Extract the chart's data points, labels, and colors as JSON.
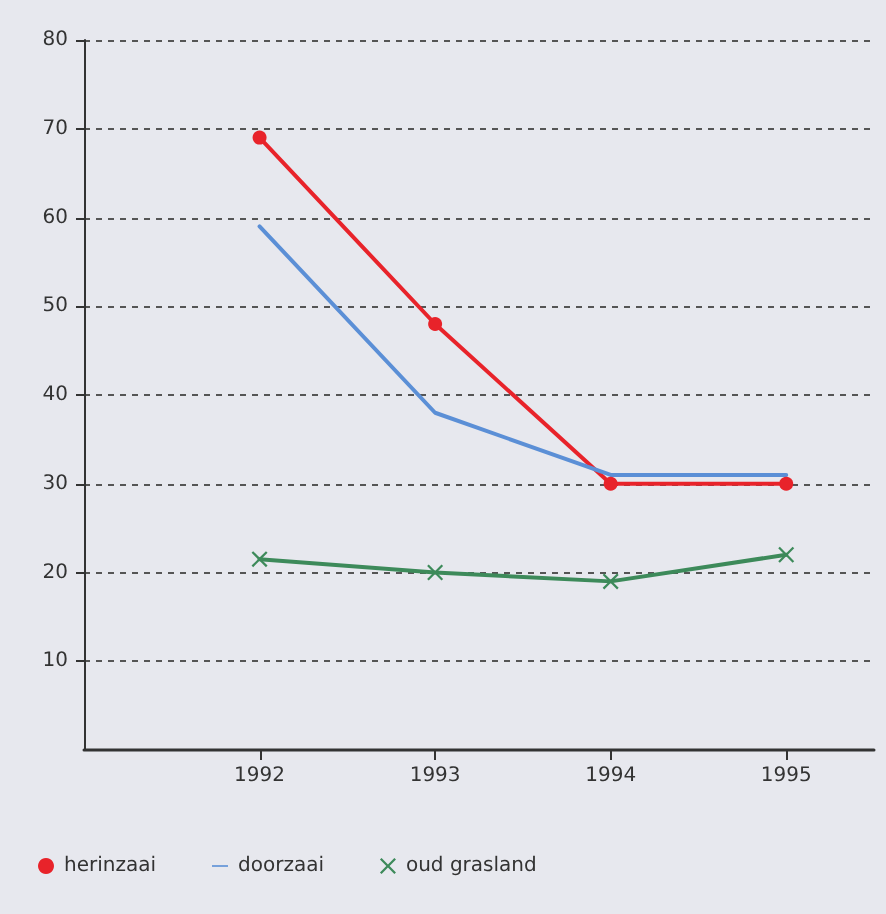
{
  "chart_data": {
    "type": "line",
    "x": [
      1992,
      1993,
      1994,
      1995
    ],
    "xlim": [
      1991,
      1995.5
    ],
    "xticks": [
      1992,
      1993,
      1994,
      1995
    ],
    "ylim": [
      0,
      80
    ],
    "yticks": [
      10,
      20,
      30,
      40,
      50,
      60,
      70,
      80
    ],
    "grid": "y",
    "legend": "bottom",
    "series": [
      {
        "name": "herinzaai",
        "color": "#e8232a",
        "marker": "circle",
        "values": [
          69,
          48,
          30,
          30
        ]
      },
      {
        "name": "doorzaai",
        "color": "#5b8fd6",
        "marker": "none",
        "values": [
          59,
          38,
          31,
          31
        ]
      },
      {
        "name": "oud grasland",
        "color": "#3d8a5a",
        "marker": "cross",
        "values": [
          21.5,
          20,
          19,
          22
        ]
      }
    ]
  }
}
